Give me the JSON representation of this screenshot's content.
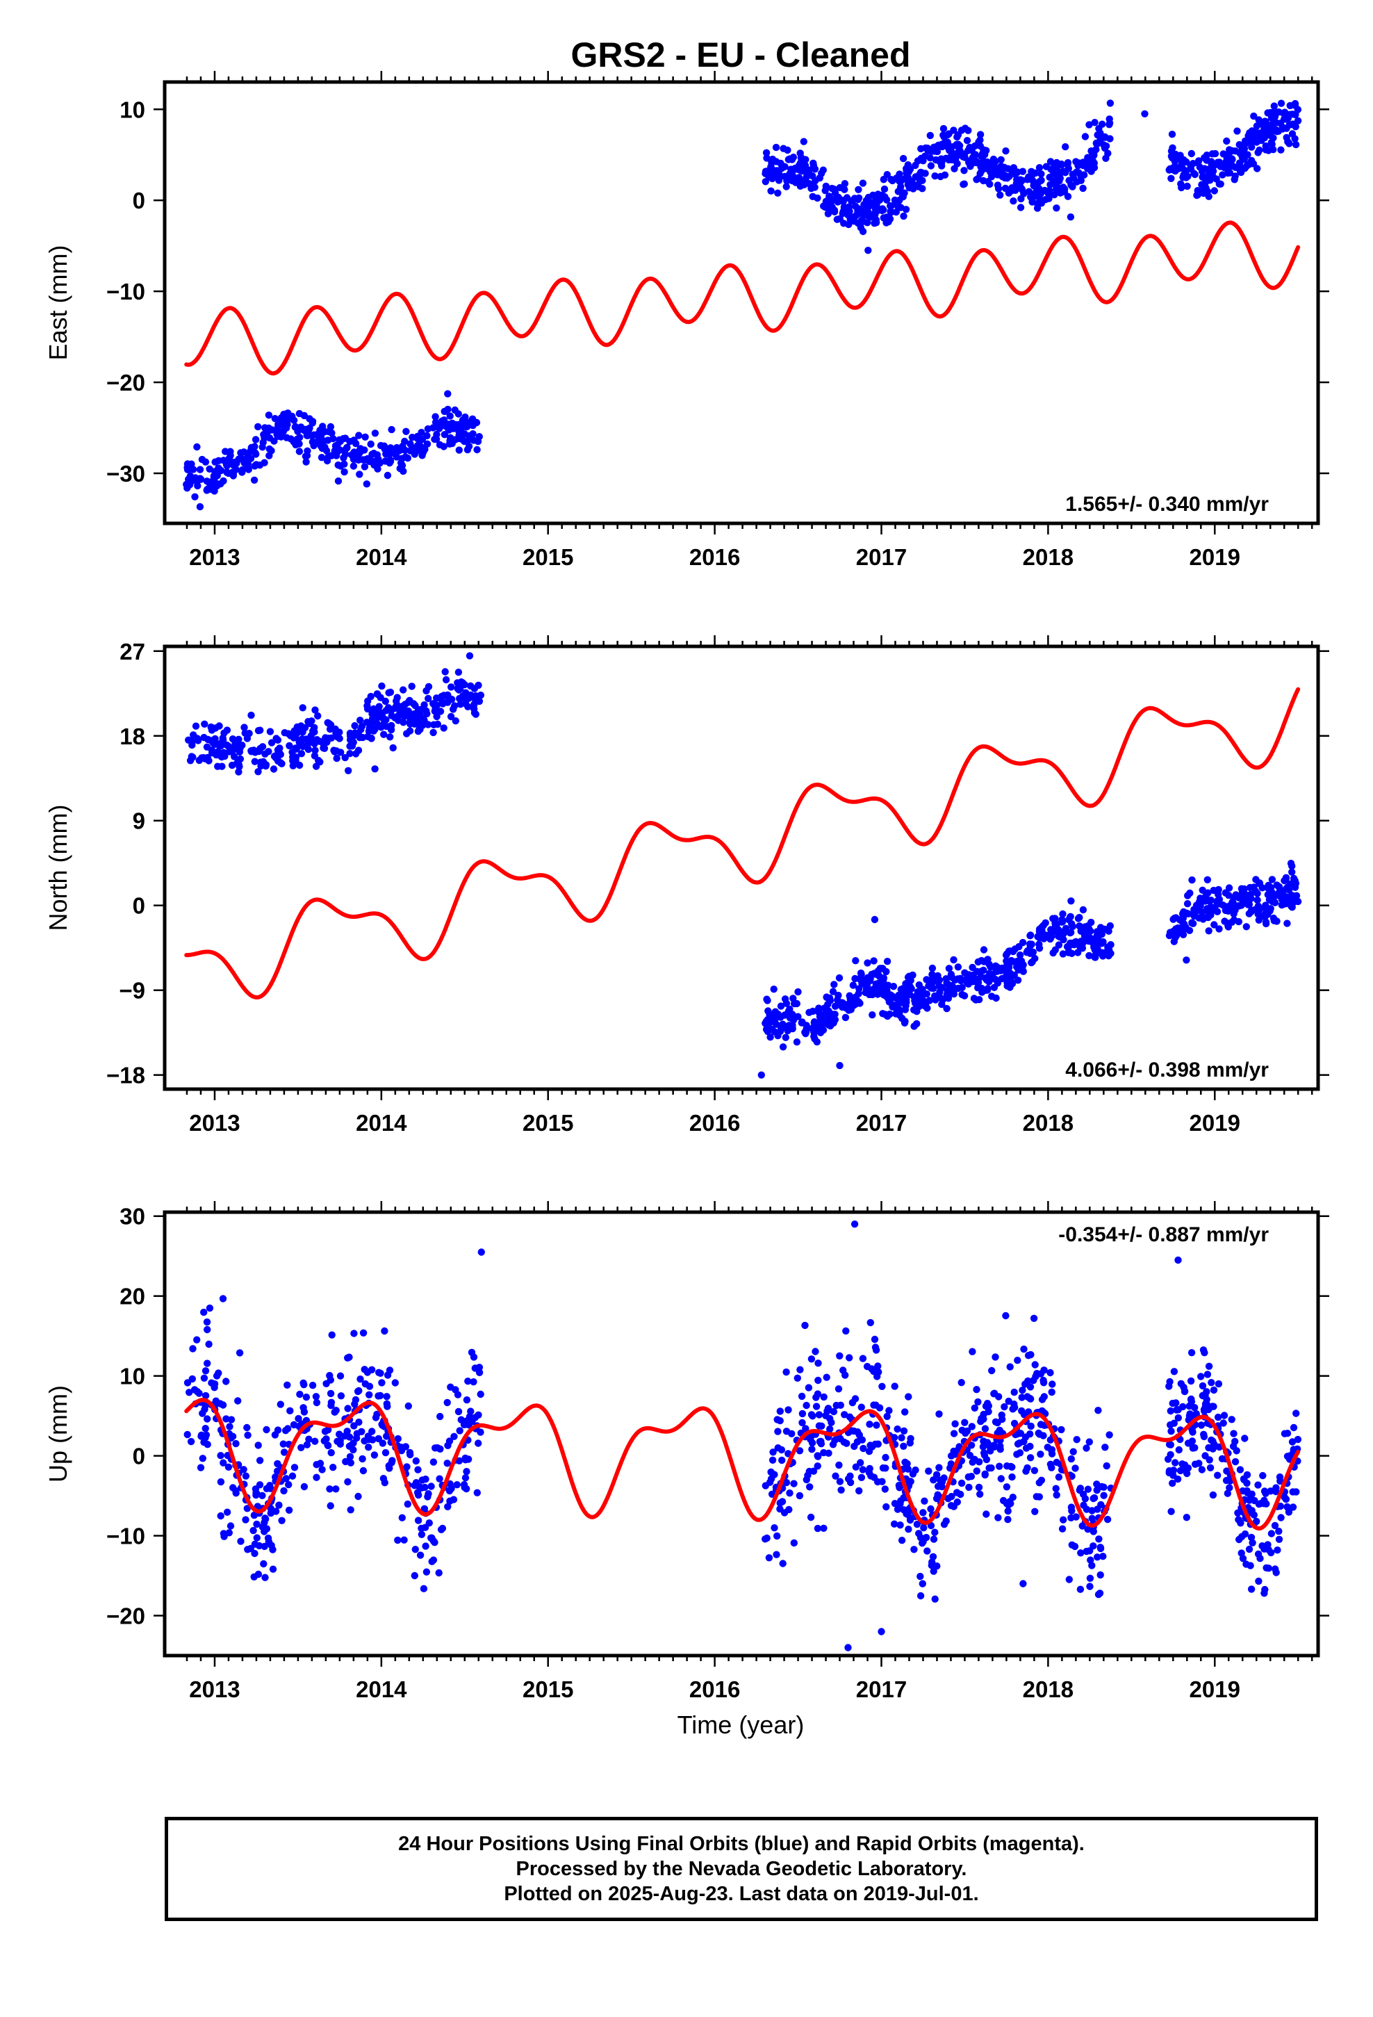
{
  "chart_data": {
    "type": "scatter",
    "title": "GRS2  - EU - Cleaned",
    "xlabel": "Time (year)",
    "x_ticks": [
      2013,
      2014,
      2015,
      2016,
      2017,
      2018,
      2019
    ],
    "xlim": [
      2012.7,
      2019.62
    ],
    "colors": {
      "points": "#0000ff",
      "fit": "#ff0000"
    },
    "panels": [
      {
        "name": "east",
        "ylabel": "East (mm)",
        "ylim": [
          -35.5,
          13
        ],
        "y_ticks": [
          -30,
          -20,
          -10,
          0,
          10
        ],
        "rate_text": "1.565+/- 0.340 mm/yr",
        "rate_position": "bottom-right",
        "segments": [
          {
            "x_start": 2012.83,
            "x_end": 2014.6,
            "knots": [
              [
                2012.83,
                -30.5
              ],
              [
                2013.0,
                -30.5
              ],
              [
                2013.2,
                -28
              ],
              [
                2013.4,
                -25
              ],
              [
                2013.6,
                -26
              ],
              [
                2013.8,
                -28
              ],
              [
                2014.0,
                -28.5
              ],
              [
                2014.2,
                -27
              ],
              [
                2014.4,
                -24.5
              ],
              [
                2014.6,
                -26
              ]
            ],
            "spread": 1.2,
            "count": 380
          },
          {
            "x_start": 2016.3,
            "x_end": 2018.38,
            "knots": [
              [
                2016.3,
                3
              ],
              [
                2016.5,
                3.5
              ],
              [
                2016.7,
                0
              ],
              [
                2016.9,
                -1.5
              ],
              [
                2017.0,
                -1
              ],
              [
                2017.2,
                2.5
              ],
              [
                2017.4,
                6
              ],
              [
                2017.6,
                4
              ],
              [
                2017.8,
                2
              ],
              [
                2018.0,
                1.5
              ],
              [
                2018.2,
                3
              ],
              [
                2018.38,
                8
              ]
            ],
            "spread": 1.3,
            "count": 560
          },
          {
            "x_start": 2018.72,
            "x_end": 2019.5,
            "knots": [
              [
                2018.72,
                4
              ],
              [
                2018.9,
                2.5
              ],
              [
                2019.1,
                4
              ],
              [
                2019.3,
                7.5
              ],
              [
                2019.5,
                9
              ]
            ],
            "spread": 1.2,
            "count": 220
          }
        ],
        "outliers": [
          [
            2018.58,
            9.5
          ],
          [
            2016.92,
            -5.5
          ]
        ],
        "fit": {
          "offset": -16.0,
          "trend": 1.565,
          "a1": -0.5,
          "b1": 0.8,
          "a2": 3.0,
          "b2": 1.0
        }
      },
      {
        "name": "north",
        "ylabel": "North (mm)",
        "ylim": [
          -19.5,
          27.5
        ],
        "y_ticks": [
          -18,
          -9,
          0,
          9,
          18,
          27
        ],
        "rate_text": "4.066+/- 0.398 mm/yr",
        "rate_position": "bottom-right",
        "segments": [
          {
            "x_start": 2012.83,
            "x_end": 2014.6,
            "knots": [
              [
                2012.83,
                16.5
              ],
              [
                2013.0,
                17
              ],
              [
                2013.3,
                16
              ],
              [
                2013.6,
                18
              ],
              [
                2013.8,
                17
              ],
              [
                2014.0,
                20.5
              ],
              [
                2014.3,
                20.5
              ],
              [
                2014.6,
                22.5
              ]
            ],
            "spread": 1.2,
            "count": 380
          },
          {
            "x_start": 2016.3,
            "x_end": 2018.38,
            "knots": [
              [
                2016.3,
                -12
              ],
              [
                2016.6,
                -12.5
              ],
              [
                2016.95,
                -8
              ],
              [
                2017.1,
                -10
              ],
              [
                2017.5,
                -8
              ],
              [
                2017.8,
                -7
              ],
              [
                2018.0,
                -2.5
              ],
              [
                2018.2,
                -3
              ],
              [
                2018.38,
                -4
              ]
            ],
            "spread": 1.2,
            "count": 560
          },
          {
            "x_start": 2018.72,
            "x_end": 2019.5,
            "knots": [
              [
                2018.72,
                -4
              ],
              [
                2018.9,
                0
              ],
              [
                2019.1,
                0
              ],
              [
                2019.3,
                0
              ],
              [
                2019.5,
                1.5
              ]
            ],
            "spread": 1.2,
            "count": 220
          }
        ],
        "outliers": [
          [
            2016.28,
            -18
          ],
          [
            2014.53,
            26.5
          ],
          [
            2016.75,
            -17
          ],
          [
            2016.96,
            -1.5
          ]
        ],
        "fit": {
          "offset": -7.0,
          "trend": 4.066,
          "a1": -3.5,
          "b1": -0.8,
          "a2": 0.8,
          "b2": 1.5
        }
      },
      {
        "name": "up",
        "ylabel": "Up (mm)",
        "ylim": [
          -25,
          30.5
        ],
        "y_ticks": [
          -20,
          -10,
          0,
          10,
          20,
          30
        ],
        "rate_text": "-0.354+/- 0.887 mm/yr",
        "rate_position": "top-right",
        "segments": [
          {
            "x_start": 2012.83,
            "x_end": 2014.6,
            "fit_follow": true,
            "spread": 4.5,
            "count": 420
          },
          {
            "x_start": 2016.3,
            "x_end": 2018.38,
            "fit_follow": true,
            "spread": 5.0,
            "count": 560
          },
          {
            "x_start": 2018.72,
            "x_end": 2019.5,
            "fit_follow": true,
            "spread": 4.0,
            "count": 240
          }
        ],
        "outliers": [
          [
            2016.84,
            29
          ],
          [
            2018.78,
            24.5
          ],
          [
            2016.8,
            -24
          ],
          [
            2014.6,
            25.5
          ],
          [
            2014.2,
            -15
          ],
          [
            2017.0,
            -22
          ],
          [
            2017.85,
            -16
          ]
        ],
        "fit": {
          "offset": 1.6,
          "trend": -0.354,
          "a1": -5.5,
          "b1": 1.5,
          "a2": 0,
          "b2": 2.8
        }
      }
    ]
  },
  "caption": {
    "line1": "24 Hour Positions Using Final Orbits (blue) and Rapid Orbits (magenta).",
    "line2": "Processed by the Nevada Geodetic Laboratory.",
    "line3": "Plotted on 2025-Aug-23. Last data on 2019-Jul-01."
  }
}
